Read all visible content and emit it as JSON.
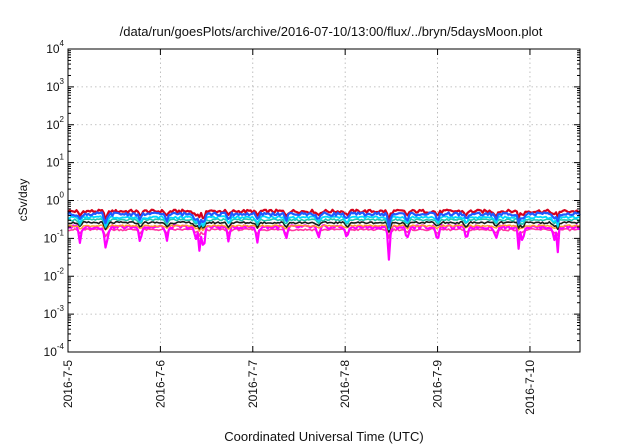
{
  "chart_data": {
    "type": "line",
    "title": "/data/run/goesPlots/archive/2016-07-10/13:00/flux/../bryn/5daysMoon.plot",
    "xlabel": "Coordinated Universal Time (UTC)",
    "ylabel": "cSv/day",
    "yscale": "log",
    "ylim": [
      0.0001,
      10000
    ],
    "xlim": [
      "2016-07-05T00:00",
      "2016-07-10T13:00"
    ],
    "grid": true,
    "x_tick_labels": [
      "2016-7-5",
      "2016-7-6",
      "2016-7-7",
      "2016-7-8",
      "2016-7-9",
      "2016-7-10"
    ],
    "y_ticks": [
      {
        "base": "10",
        "exp": "-4"
      },
      {
        "base": "10",
        "exp": "-3"
      },
      {
        "base": "10",
        "exp": "-2"
      },
      {
        "base": "10",
        "exp": "-1"
      },
      {
        "base": "10",
        "exp": "0"
      },
      {
        "base": "10",
        "exp": "1"
      },
      {
        "base": "10",
        "exp": "2"
      },
      {
        "base": "10",
        "exp": "3"
      },
      {
        "base": "10",
        "exp": "4"
      }
    ],
    "series": [
      {
        "color": "#d6001c",
        "level": 0.52,
        "jitter": 0.1,
        "dip": 0.35,
        "width": 2.2
      },
      {
        "color": "#ff3aa0",
        "level": 0.17,
        "jitter": 0.06,
        "dip": 0.3,
        "width": 1.6
      },
      {
        "color": "#ff00ff",
        "level": 0.2,
        "jitter": 0.12,
        "dip": 0.85,
        "width": 2.2
      },
      {
        "color": "#ff9a2e",
        "level": 0.215,
        "jitter": 0.05,
        "dip": 0.25,
        "width": 1.4
      },
      {
        "color": "#1a1a1a",
        "level": 0.26,
        "jitter": 0.06,
        "dip": 0.35,
        "width": 1.6
      },
      {
        "color": "#22c7b0",
        "level": 0.31,
        "jitter": 0.06,
        "dip": 0.35,
        "width": 1.6
      },
      {
        "color": "#00d8ff",
        "level": 0.36,
        "jitter": 0.07,
        "dip": 0.4,
        "width": 1.8
      },
      {
        "color": "#1f5bff",
        "level": 0.44,
        "jitter": 0.1,
        "dip": 0.45,
        "width": 2.2
      }
    ],
    "dip_days": [
      0.13,
      0.42,
      0.78,
      1.07,
      1.38,
      1.45,
      1.74,
      2.05,
      2.36,
      2.71,
      3.02,
      3.48,
      3.67,
      4.0,
      4.31,
      4.63,
      4.92,
      5.26
    ],
    "spike_days": [
      0.4,
      1.42,
      1.47,
      3.47,
      4.88,
      5.3
    ]
  }
}
